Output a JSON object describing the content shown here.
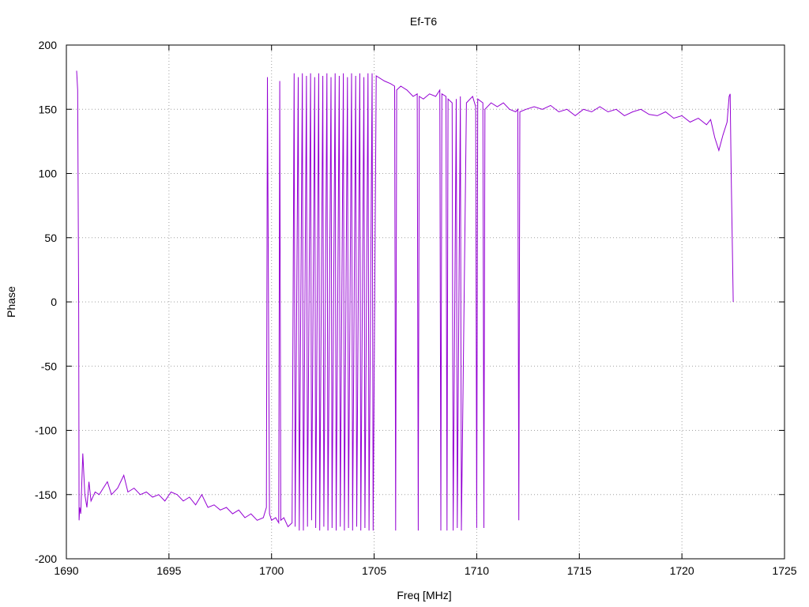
{
  "chart_data": {
    "type": "line",
    "title": "Ef-T6",
    "xlabel": "Freq [MHz]",
    "ylabel": "Phase",
    "xlim": [
      1690,
      1725
    ],
    "ylim": [
      -200,
      200
    ],
    "xticks": [
      1690,
      1695,
      1700,
      1705,
      1710,
      1715,
      1720,
      1725
    ],
    "yticks": [
      -200,
      -150,
      -100,
      -50,
      0,
      50,
      100,
      150,
      200
    ],
    "grid": true,
    "legend": "none",
    "colors": {
      "series": "#9400d3",
      "grid": "#a0a0a0",
      "frame": "#000000"
    },
    "series": [
      {
        "color": "#9400d3",
        "x": [
          1690.5,
          1690.55,
          1690.6,
          1690.62,
          1690.65,
          1690.7,
          1690.8,
          1690.9,
          1691.0,
          1691.1,
          1691.2,
          1691.4,
          1691.6,
          1691.8,
          1692.0,
          1692.2,
          1692.5,
          1692.8,
          1693.0,
          1693.3,
          1693.6,
          1693.9,
          1694.2,
          1694.5,
          1694.8,
          1695.1,
          1695.4,
          1695.7,
          1696.0,
          1696.3,
          1696.6,
          1696.9,
          1697.2,
          1697.5,
          1697.8,
          1698.1,
          1698.4,
          1698.7,
          1699.0,
          1699.3,
          1699.6,
          1699.75,
          1699.8,
          1699.85,
          1699.9,
          1700.0,
          1700.2,
          1700.35,
          1700.4,
          1700.45,
          1700.6,
          1700.8,
          1701.0,
          1701.1,
          1701.15,
          1701.3,
          1701.35,
          1701.5,
          1701.55,
          1701.7,
          1701.75,
          1701.9,
          1701.95,
          1702.1,
          1702.15,
          1702.3,
          1702.35,
          1702.5,
          1702.55,
          1702.7,
          1702.75,
          1702.9,
          1702.95,
          1703.1,
          1703.15,
          1703.3,
          1703.35,
          1703.5,
          1703.55,
          1703.7,
          1703.75,
          1703.9,
          1703.95,
          1704.1,
          1704.15,
          1704.3,
          1704.35,
          1704.5,
          1704.55,
          1704.7,
          1704.75,
          1704.9,
          1704.95,
          1705.1,
          1705.5,
          1705.8,
          1706.0,
          1706.05,
          1706.1,
          1706.3,
          1706.6,
          1706.9,
          1707.1,
          1707.15,
          1707.2,
          1707.4,
          1707.7,
          1708.0,
          1708.2,
          1708.25,
          1708.3,
          1708.5,
          1708.55,
          1708.6,
          1708.8,
          1708.85,
          1709.0,
          1709.05,
          1709.2,
          1709.25,
          1709.5,
          1709.8,
          1709.95,
          1710.0,
          1710.05,
          1710.3,
          1710.35,
          1710.4,
          1710.7,
          1711.0,
          1711.3,
          1711.6,
          1711.9,
          1712.0,
          1712.05,
          1712.1,
          1712.4,
          1712.8,
          1713.2,
          1713.6,
          1714.0,
          1714.4,
          1714.8,
          1715.2,
          1715.6,
          1716.0,
          1716.4,
          1716.8,
          1717.2,
          1717.6,
          1718.0,
          1718.4,
          1718.8,
          1719.2,
          1719.6,
          1720.0,
          1720.4,
          1720.8,
          1721.2,
          1721.4,
          1721.6,
          1721.8,
          1722.0,
          1722.2,
          1722.3,
          1722.35,
          1722.4,
          1722.45,
          1722.5
        ],
        "y": [
          180,
          165,
          -5,
          -170,
          -160,
          -165,
          -118,
          -150,
          -160,
          -140,
          -155,
          -148,
          -150,
          -145,
          -140,
          -150,
          -145,
          -135,
          -148,
          -145,
          -150,
          -148,
          -152,
          -150,
          -155,
          -148,
          -150,
          -155,
          -152,
          -158,
          -150,
          -160,
          -158,
          -162,
          -160,
          -165,
          -162,
          -168,
          -165,
          -170,
          -168,
          -160,
          175,
          5,
          -165,
          -170,
          -168,
          -172,
          172,
          -170,
          -168,
          -175,
          -172,
          178,
          -175,
          175,
          -178,
          178,
          -178,
          176,
          -175,
          178,
          -170,
          175,
          -176,
          178,
          -178,
          176,
          -175,
          178,
          -178,
          175,
          -176,
          178,
          -178,
          176,
          -175,
          178,
          -178,
          175,
          -176,
          178,
          -178,
          176,
          -175,
          178,
          -178,
          175,
          -176,
          178,
          -178,
          178,
          -178,
          176,
          172,
          170,
          168,
          -178,
          165,
          168,
          165,
          160,
          162,
          -178,
          160,
          158,
          162,
          160,
          165,
          -178,
          162,
          160,
          -178,
          158,
          155,
          -178,
          158,
          -176,
          160,
          -178,
          155,
          160,
          152,
          -176,
          158,
          155,
          -176,
          150,
          155,
          152,
          155,
          150,
          148,
          150,
          -170,
          148,
          150,
          152,
          150,
          153,
          148,
          150,
          145,
          150,
          148,
          152,
          148,
          150,
          145,
          148,
          150,
          146,
          145,
          148,
          143,
          145,
          140,
          143,
          138,
          142,
          128,
          118,
          130,
          140,
          160,
          162,
          100,
          50,
          0
        ]
      }
    ]
  }
}
